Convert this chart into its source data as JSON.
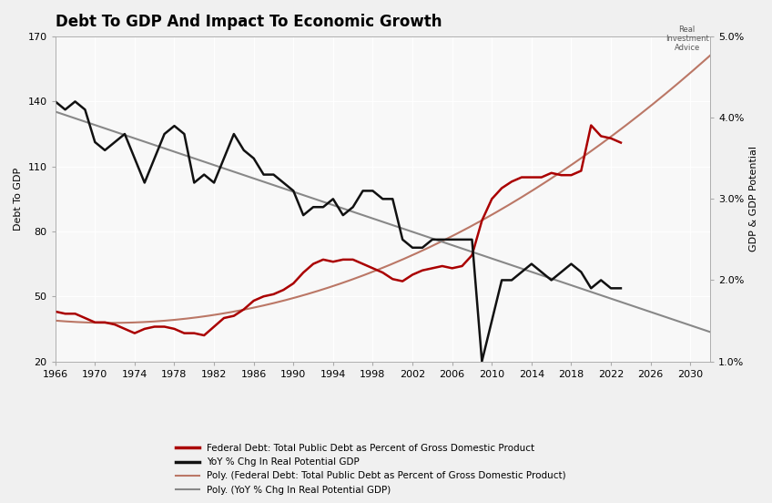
{
  "title": "Debt To GDP And Impact To Economic Growth",
  "title_fontsize": 12,
  "background_color": "#f0f0f0",
  "plot_bg_color": "#f8f8f8",
  "left_ylabel": "Debt To GDP",
  "right_ylabel": "GDP & GDP Potential",
  "xlim": [
    1966,
    2032
  ],
  "ylim_left": [
    20,
    170
  ],
  "ylim_right": [
    1.0,
    5.0
  ],
  "yticks_left": [
    20,
    50,
    80,
    110,
    140,
    170
  ],
  "yticks_right_vals": [
    1.0,
    2.0,
    3.0,
    4.0,
    5.0
  ],
  "yticks_right_labels": [
    "1.0%",
    "2.0%",
    "3.0%",
    "4.0%",
    "5.0%"
  ],
  "xticks": [
    1966,
    1970,
    1974,
    1978,
    1982,
    1986,
    1990,
    1994,
    1998,
    2002,
    2006,
    2010,
    2014,
    2018,
    2022,
    2026,
    2030
  ],
  "legend_entries": [
    {
      "label": "Federal Debt: Total Public Debt as Percent of Gross Domestic Product",
      "color": "#aa0000",
      "lw": 2.0
    },
    {
      "label": "YoY % Chg In Real Potential GDP",
      "color": "#111111",
      "lw": 2.0
    },
    {
      "label": "Poly. (Federal Debt: Total Public Debt as Percent of Gross Domestic Product)",
      "color": "#bb7766",
      "lw": 1.5
    },
    {
      "label": "Poly. (YoY % Chg In Real Potential GDP)",
      "color": "#888888",
      "lw": 1.5
    }
  ],
  "debt_years": [
    1966,
    1967,
    1968,
    1969,
    1970,
    1971,
    1972,
    1973,
    1974,
    1975,
    1976,
    1977,
    1978,
    1979,
    1980,
    1981,
    1982,
    1983,
    1984,
    1985,
    1986,
    1987,
    1988,
    1989,
    1990,
    1991,
    1992,
    1993,
    1994,
    1995,
    1996,
    1997,
    1998,
    1999,
    2000,
    2001,
    2002,
    2003,
    2004,
    2005,
    2006,
    2007,
    2008,
    2009,
    2010,
    2011,
    2012,
    2013,
    2014,
    2015,
    2016,
    2017,
    2018,
    2019,
    2020,
    2021,
    2022,
    2023
  ],
  "debt_values": [
    43,
    42,
    42,
    40,
    38,
    38,
    37,
    35,
    33,
    35,
    36,
    36,
    35,
    33,
    33,
    32,
    36,
    40,
    41,
    44,
    48,
    50,
    51,
    53,
    56,
    61,
    65,
    67,
    66,
    67,
    67,
    65,
    63,
    61,
    58,
    57,
    60,
    62,
    63,
    64,
    63,
    64,
    69,
    85,
    95,
    100,
    103,
    105,
    105,
    105,
    107,
    106,
    106,
    108,
    129,
    124,
    123,
    121
  ],
  "gdp_years": [
    1966,
    1967,
    1968,
    1969,
    1970,
    1971,
    1972,
    1973,
    1974,
    1975,
    1976,
    1977,
    1978,
    1979,
    1980,
    1981,
    1982,
    1983,
    1984,
    1985,
    1986,
    1987,
    1988,
    1989,
    1990,
    1991,
    1992,
    1993,
    1994,
    1995,
    1996,
    1997,
    1998,
    1999,
    2000,
    2001,
    2002,
    2003,
    2004,
    2005,
    2006,
    2007,
    2008,
    2009,
    2010,
    2011,
    2012,
    2013,
    2014,
    2015,
    2016,
    2017,
    2018,
    2019,
    2020,
    2021,
    2022,
    2023
  ],
  "gdp_values_pct": [
    4.2,
    4.1,
    4.2,
    4.1,
    3.7,
    3.6,
    3.7,
    3.8,
    3.5,
    3.2,
    3.5,
    3.8,
    3.9,
    3.8,
    3.2,
    3.3,
    3.2,
    3.5,
    3.8,
    3.6,
    3.5,
    3.3,
    3.3,
    3.2,
    3.1,
    2.8,
    2.9,
    2.9,
    3.0,
    2.8,
    2.9,
    3.1,
    3.1,
    3.0,
    3.0,
    2.5,
    2.4,
    2.4,
    2.5,
    2.5,
    2.5,
    2.5,
    2.5,
    1.0,
    1.5,
    2.0,
    2.0,
    2.1,
    2.2,
    2.1,
    2.0,
    2.1,
    2.2,
    2.1,
    1.9,
    2.0,
    1.9,
    1.9
  ],
  "debt_poly_start": 1966,
  "debt_poly_end": 2032,
  "gdp_poly_start": 1966,
  "gdp_poly_end": 2032
}
